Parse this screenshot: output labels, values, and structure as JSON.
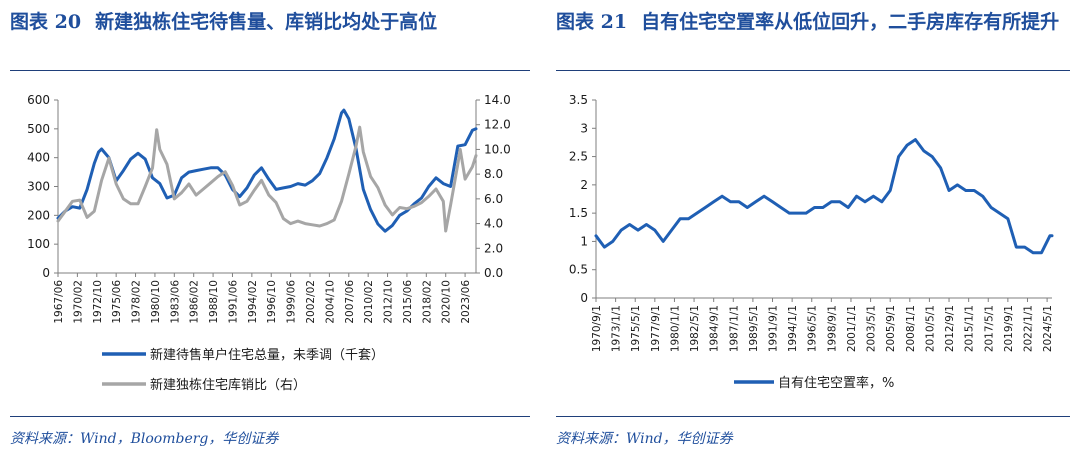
{
  "charts": [
    {
      "figure_number": "图表 20",
      "title": "新建独栋住宅待售量、库销比均处于高位",
      "source": "资料来源：Wind，Bloomberg，华创证券"
    },
    {
      "figure_number": "图表 21",
      "title": "自有住宅空置率从低位回升，二手房库存有所提升",
      "source": "资料来源：Wind，华创证券"
    }
  ],
  "chart_data": [
    {
      "type": "line",
      "title": "新建独栋住宅待售量、库销比均处于高位",
      "x_ticks": [
        "1967/06",
        "1970/02",
        "1972/10",
        "1975/06",
        "1978/02",
        "1980/10",
        "1983/06",
        "1986/02",
        "1988/10",
        "1991/06",
        "1994/02",
        "1996/10",
        "1999/06",
        "2002/02",
        "2004/10",
        "2007/06",
        "2010/02",
        "2012/10",
        "2015/06",
        "2018/02",
        "2020/10",
        "2023/06"
      ],
      "y_left": {
        "ticks": [
          "0",
          "100",
          "200",
          "300",
          "400",
          "500",
          "600"
        ],
        "range": [
          0,
          600
        ]
      },
      "y_right": {
        "ticks": [
          "0.0",
          "2.0",
          "4.0",
          "6.0",
          "8.0",
          "10.0",
          "12.0",
          "14.0"
        ],
        "range": [
          0,
          14
        ]
      },
      "legend_position": "bottom",
      "grid": false,
      "series": [
        {
          "name": "新建待售单户住宅总量，未季调（千套）",
          "axis": "left",
          "color": "#1f5fb4",
          "points": [
            [
              "1967/06",
              190
            ],
            [
              "1968/06",
              215
            ],
            [
              "1969/06",
              230
            ],
            [
              "1970/06",
              225
            ],
            [
              "1971/06",
              290
            ],
            [
              "1972/06",
              380
            ],
            [
              "1973/01",
              420
            ],
            [
              "1973/06",
              430
            ],
            [
              "1974/06",
              400
            ],
            [
              "1975/06",
              320
            ],
            [
              "1976/06",
              355
            ],
            [
              "1977/06",
              395
            ],
            [
              "1978/06",
              415
            ],
            [
              "1979/06",
              395
            ],
            [
              "1980/06",
              330
            ],
            [
              "1981/06",
              310
            ],
            [
              "1982/06",
              260
            ],
            [
              "1983/06",
              270
            ],
            [
              "1984/06",
              330
            ],
            [
              "1985/06",
              350
            ],
            [
              "1986/06",
              355
            ],
            [
              "1987/06",
              360
            ],
            [
              "1988/06",
              365
            ],
            [
              "1989/06",
              365
            ],
            [
              "1990/06",
              340
            ],
            [
              "1991/06",
              290
            ],
            [
              "1992/06",
              265
            ],
            [
              "1993/06",
              295
            ],
            [
              "1994/06",
              340
            ],
            [
              "1995/06",
              365
            ],
            [
              "1996/06",
              325
            ],
            [
              "1997/06",
              290
            ],
            [
              "1998/06",
              295
            ],
            [
              "1999/06",
              300
            ],
            [
              "2000/06",
              310
            ],
            [
              "2001/06",
              305
            ],
            [
              "2002/06",
              320
            ],
            [
              "2003/06",
              345
            ],
            [
              "2004/06",
              400
            ],
            [
              "2005/06",
              465
            ],
            [
              "2006/06",
              555
            ],
            [
              "2006/10",
              565
            ],
            [
              "2007/06",
              535
            ],
            [
              "2008/06",
              430
            ],
            [
              "2009/06",
              290
            ],
            [
              "2010/06",
              220
            ],
            [
              "2011/06",
              170
            ],
            [
              "2012/06",
              145
            ],
            [
              "2013/06",
              165
            ],
            [
              "2014/06",
              200
            ],
            [
              "2015/06",
              215
            ],
            [
              "2016/06",
              240
            ],
            [
              "2017/06",
              260
            ],
            [
              "2018/06",
              300
            ],
            [
              "2019/06",
              330
            ],
            [
              "2020/06",
              310
            ],
            [
              "2021/06",
              300
            ],
            [
              "2022/06",
              440
            ],
            [
              "2023/06",
              445
            ],
            [
              "2024/06",
              495
            ],
            [
              "2024/12",
              500
            ]
          ]
        },
        {
          "name": "新建独栋住宅库销比（右）",
          "axis": "right",
          "color": "#a6a6a6",
          "points": [
            [
              "1967/06",
              4.2
            ],
            [
              "1968/06",
              5.0
            ],
            [
              "1969/06",
              5.8
            ],
            [
              "1970/06",
              5.9
            ],
            [
              "1971/06",
              4.5
            ],
            [
              "1972/06",
              5.0
            ],
            [
              "1973/06",
              7.5
            ],
            [
              "1974/06",
              9.3
            ],
            [
              "1975/06",
              7.2
            ],
            [
              "1976/06",
              6.0
            ],
            [
              "1977/06",
              5.6
            ],
            [
              "1978/06",
              5.6
            ],
            [
              "1979/06",
              7.0
            ],
            [
              "1980/06",
              8.5
            ],
            [
              "1981/01",
              11.6
            ],
            [
              "1981/06",
              10.0
            ],
            [
              "1982/06",
              8.8
            ],
            [
              "1983/06",
              6.0
            ],
            [
              "1984/06",
              6.5
            ],
            [
              "1985/06",
              7.2
            ],
            [
              "1986/06",
              6.3
            ],
            [
              "1987/06",
              6.8
            ],
            [
              "1988/06",
              7.3
            ],
            [
              "1989/06",
              7.8
            ],
            [
              "1990/06",
              8.2
            ],
            [
              "1991/06",
              7.1
            ],
            [
              "1992/06",
              5.5
            ],
            [
              "1993/06",
              5.8
            ],
            [
              "1994/06",
              6.7
            ],
            [
              "1995/06",
              7.5
            ],
            [
              "1996/06",
              6.3
            ],
            [
              "1997/06",
              5.7
            ],
            [
              "1998/06",
              4.4
            ],
            [
              "1999/06",
              4.0
            ],
            [
              "2000/06",
              4.2
            ],
            [
              "2001/06",
              4.0
            ],
            [
              "2002/06",
              3.9
            ],
            [
              "2003/06",
              3.8
            ],
            [
              "2004/06",
              4.0
            ],
            [
              "2005/06",
              4.3
            ],
            [
              "2006/06",
              5.8
            ],
            [
              "2007/06",
              8.0
            ],
            [
              "2008/06",
              10.3
            ],
            [
              "2008/12",
              11.8
            ],
            [
              "2009/06",
              9.8
            ],
            [
              "2010/06",
              7.8
            ],
            [
              "2011/06",
              6.9
            ],
            [
              "2012/06",
              5.5
            ],
            [
              "2013/06",
              4.7
            ],
            [
              "2014/06",
              5.3
            ],
            [
              "2015/06",
              5.2
            ],
            [
              "2016/06",
              5.4
            ],
            [
              "2017/06",
              5.7
            ],
            [
              "2018/06",
              6.2
            ],
            [
              "2019/06",
              6.8
            ],
            [
              "2020/06",
              5.8
            ],
            [
              "2020/10",
              3.4
            ],
            [
              "2021/06",
              5.5
            ],
            [
              "2022/06",
              8.8
            ],
            [
              "2022/10",
              10.0
            ],
            [
              "2023/06",
              7.6
            ],
            [
              "2024/06",
              8.6
            ],
            [
              "2024/12",
              9.5
            ]
          ]
        }
      ]
    },
    {
      "type": "line",
      "title": "自有住宅空置率从低位回升，二手房库存有所提升",
      "x_ticks": [
        "1970/9/1",
        "1973/1/1",
        "1975/5/1",
        "1977/9/1",
        "1980/1/1",
        "1982/5/1",
        "1984/9/1",
        "1987/1/1",
        "1989/5/1",
        "1991/9/1",
        "1994/1/1",
        "1996/5/1",
        "1998/9/1",
        "2001/1/1",
        "2003/5/1",
        "2005/9/1",
        "2008/1/1",
        "2010/5/1",
        "2012/9/1",
        "2015/1/1",
        "2017/5/1",
        "2019/9/1",
        "2022/1/1",
        "2024/5/1"
      ],
      "y_left": {
        "ticks": [
          "0",
          "0.5",
          "1",
          "1.5",
          "2",
          "2.5",
          "3",
          "3.5"
        ],
        "range": [
          0,
          3.5
        ]
      },
      "legend_position": "bottom",
      "grid": false,
      "series": [
        {
          "name": "自有住宅空置率，%",
          "axis": "left",
          "color": "#1f5fb4",
          "points": [
            [
              "1970/9/1",
              1.1
            ],
            [
              "1971/9/1",
              0.9
            ],
            [
              "1972/9/1",
              1.0
            ],
            [
              "1973/9/1",
              1.2
            ],
            [
              "1974/9/1",
              1.3
            ],
            [
              "1975/9/1",
              1.2
            ],
            [
              "1976/9/1",
              1.3
            ],
            [
              "1977/9/1",
              1.2
            ],
            [
              "1978/9/1",
              1.0
            ],
            [
              "1979/9/1",
              1.2
            ],
            [
              "1980/9/1",
              1.4
            ],
            [
              "1981/9/1",
              1.4
            ],
            [
              "1982/9/1",
              1.5
            ],
            [
              "1983/9/1",
              1.6
            ],
            [
              "1984/9/1",
              1.7
            ],
            [
              "1985/9/1",
              1.8
            ],
            [
              "1986/9/1",
              1.7
            ],
            [
              "1987/9/1",
              1.7
            ],
            [
              "1988/9/1",
              1.6
            ],
            [
              "1989/9/1",
              1.7
            ],
            [
              "1990/9/1",
              1.8
            ],
            [
              "1991/9/1",
              1.7
            ],
            [
              "1992/9/1",
              1.6
            ],
            [
              "1993/9/1",
              1.5
            ],
            [
              "1994/9/1",
              1.5
            ],
            [
              "1995/9/1",
              1.5
            ],
            [
              "1996/9/1",
              1.6
            ],
            [
              "1997/9/1",
              1.6
            ],
            [
              "1998/9/1",
              1.7
            ],
            [
              "1999/9/1",
              1.7
            ],
            [
              "2000/9/1",
              1.6
            ],
            [
              "2001/9/1",
              1.8
            ],
            [
              "2002/9/1",
              1.7
            ],
            [
              "2003/9/1",
              1.8
            ],
            [
              "2004/9/1",
              1.7
            ],
            [
              "2005/9/1",
              1.9
            ],
            [
              "2006/9/1",
              2.5
            ],
            [
              "2007/9/1",
              2.7
            ],
            [
              "2008/9/1",
              2.8
            ],
            [
              "2009/9/1",
              2.6
            ],
            [
              "2010/9/1",
              2.5
            ],
            [
              "2011/9/1",
              2.3
            ],
            [
              "2012/9/1",
              1.9
            ],
            [
              "2013/9/1",
              2.0
            ],
            [
              "2014/9/1",
              1.9
            ],
            [
              "2015/9/1",
              1.9
            ],
            [
              "2016/9/1",
              1.8
            ],
            [
              "2017/9/1",
              1.6
            ],
            [
              "2018/9/1",
              1.5
            ],
            [
              "2019/9/1",
              1.4
            ],
            [
              "2020/9/1",
              0.9
            ],
            [
              "2021/9/1",
              0.9
            ],
            [
              "2022/9/1",
              0.8
            ],
            [
              "2023/9/1",
              0.8
            ],
            [
              "2024/9/1",
              1.1
            ],
            [
              "2024/12/1",
              1.1
            ]
          ]
        }
      ]
    }
  ]
}
